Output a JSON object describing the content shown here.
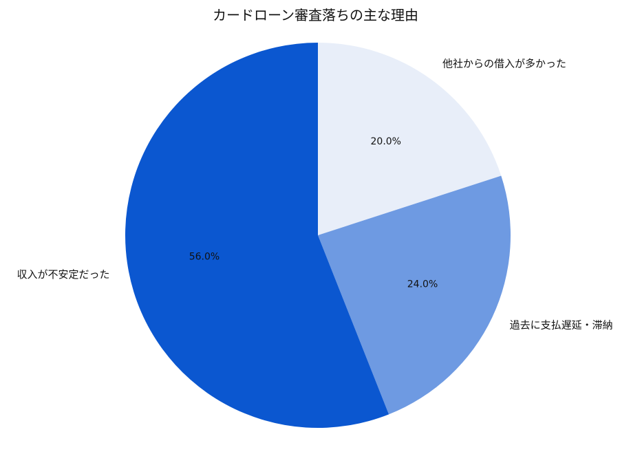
{
  "chart_data": {
    "type": "pie",
    "title": "カードローン審査落ちの主な理由",
    "slices": [
      {
        "label": "他社からの借入が多かった",
        "value": 20.0,
        "pct_label": "20.0%",
        "color": "#E8EEF9"
      },
      {
        "label": "過去に支払遅延・滞納",
        "value": 24.0,
        "pct_label": "24.0%",
        "color": "#6E9AE2"
      },
      {
        "label": "収入が不安定だった",
        "value": 56.0,
        "pct_label": "56.0%",
        "color": "#0B57D0"
      }
    ],
    "start_angle_deg": 90,
    "direction": "clockwise",
    "legend": "none"
  }
}
